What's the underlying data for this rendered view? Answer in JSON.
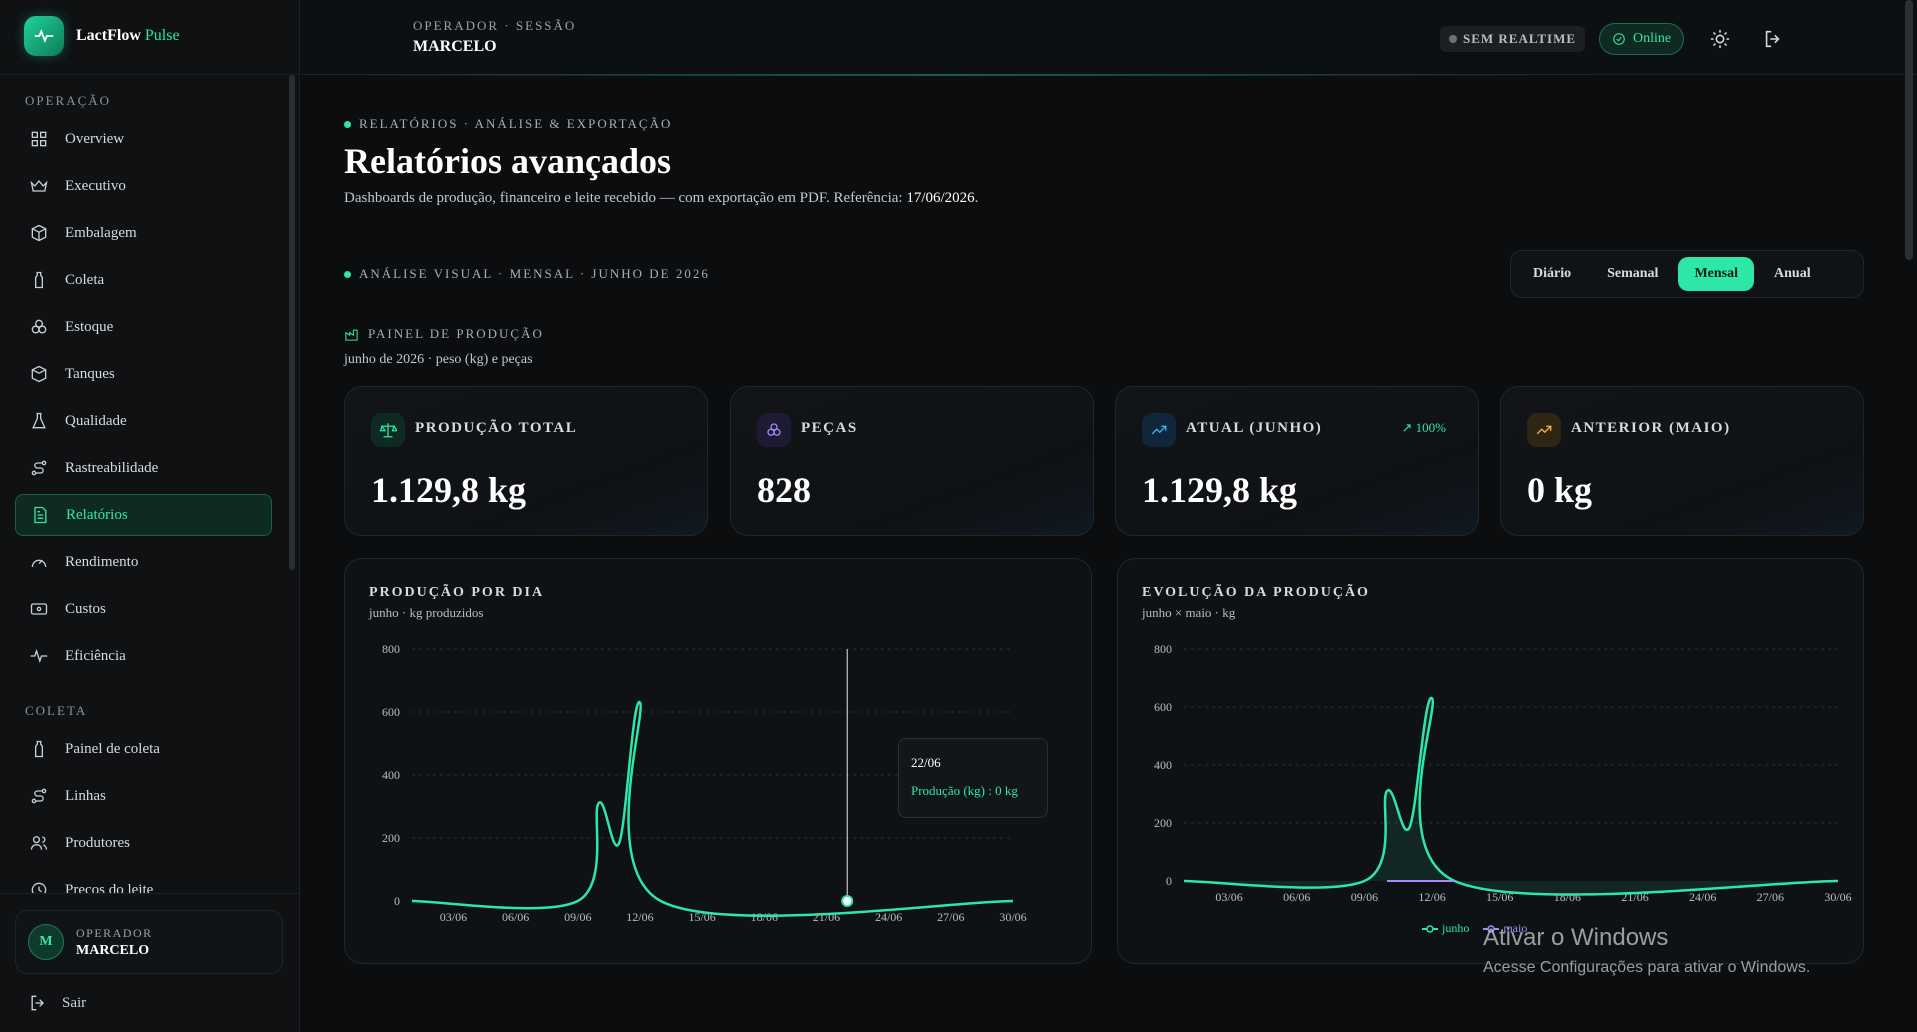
{
  "brand": {
    "name": "LactFlow",
    "accent": "Pulse"
  },
  "sidebar": {
    "sections": [
      {
        "label": "OPERAÇÃO",
        "items": [
          {
            "label": "Overview",
            "icon": "grid-icon"
          },
          {
            "label": "Executivo",
            "icon": "crown-icon"
          },
          {
            "label": "Embalagem",
            "icon": "package-icon"
          },
          {
            "label": "Coleta",
            "icon": "milk-bottle-icon"
          },
          {
            "label": "Estoque",
            "icon": "boxes-icon"
          },
          {
            "label": "Tanques",
            "icon": "tank-icon"
          },
          {
            "label": "Qualidade",
            "icon": "flask-icon"
          },
          {
            "label": "Rastreabilidade",
            "icon": "route-icon"
          },
          {
            "label": "Relatórios",
            "icon": "report-icon",
            "active": true
          },
          {
            "label": "Rendimento",
            "icon": "gauge-icon"
          },
          {
            "label": "Custos",
            "icon": "wallet-icon"
          },
          {
            "label": "Eficiência",
            "icon": "pulse-icon"
          }
        ]
      },
      {
        "label": "COLETA",
        "items": [
          {
            "label": "Painel de coleta",
            "icon": "milk-bottle-icon"
          },
          {
            "label": "Linhas",
            "icon": "route-icon"
          },
          {
            "label": "Produtores",
            "icon": "users-icon"
          },
          {
            "label": "Preços do leite",
            "icon": "price-icon"
          }
        ]
      }
    ],
    "user": {
      "initial": "M",
      "role": "OPERADOR",
      "name": "MARCELO"
    },
    "logout_label": "Sair"
  },
  "topbar": {
    "session_label": "OPERADOR · SESSÃO",
    "session_name": "MARCELO",
    "realtime_label": "SEM REALTIME",
    "online_label": "Online"
  },
  "header": {
    "kicker": "RELATÓRIOS · ANÁLISE & EXPORTAÇÃO",
    "title": "Relatórios avançados",
    "description": "Dashboards de produção, financeiro e leite recebido — com exportação em PDF. Referência:",
    "reference_date": "17/06/2026",
    "description_end": "."
  },
  "analysis": {
    "kicker": "ANÁLISE VISUAL · MENSAL · JUNHO DE 2026",
    "periods": [
      "Diário",
      "Semanal",
      "Mensal",
      "Anual"
    ],
    "active_period": "Mensal"
  },
  "panel": {
    "title": "PAINEL DE PRODUÇÃO",
    "subtitle": "junho de 2026 · peso (kg) e peças"
  },
  "kpis": [
    {
      "label": "PRODUÇÃO TOTAL",
      "value": "1.129,8 kg",
      "icon": "scale-icon",
      "color": "#2ee6a6"
    },
    {
      "label": "PEÇAS",
      "value": "828",
      "icon": "cheese-icon",
      "color": "#a78bfa"
    },
    {
      "label": "ATUAL (JUNHO)",
      "value": "1.129,8 kg",
      "icon": "trend-up-icon",
      "color": "#38bdf8",
      "badge": "↗ 100%"
    },
    {
      "label": "ANTERIOR (MAIO)",
      "value": "0 kg",
      "icon": "trend-up-icon",
      "color": "#f5b942"
    }
  ],
  "colors": {
    "accent": "#2ee6a6",
    "secondary": "#a78bfa",
    "background": "#0b0d0f"
  },
  "chart_data": [
    {
      "type": "line",
      "title": "PRODUÇÃO POR DIA",
      "subtitle": "junho · kg produzidos",
      "x_ticks": [
        "03/06",
        "06/06",
        "09/06",
        "12/06",
        "15/06",
        "18/06",
        "21/06",
        "24/06",
        "27/06",
        "30/06"
      ],
      "y_ticks": [
        0,
        200,
        400,
        600,
        800
      ],
      "ylim": [
        0,
        800
      ],
      "xlim": [
        1,
        30
      ],
      "series": [
        {
          "name": "Produção (kg)",
          "points": [
            [
              1,
              0
            ],
            [
              9,
              0
            ],
            [
              10,
              310
            ],
            [
              11,
              185
            ],
            [
              12,
              630
            ],
            [
              13,
              0
            ],
            [
              30,
              0
            ]
          ]
        }
      ],
      "tooltip": {
        "date": "22/06",
        "text": "Produção (kg) : 0 kg"
      },
      "grid": true
    },
    {
      "type": "area",
      "title": "EVOLUÇÃO DA PRODUÇÃO",
      "subtitle": "junho × maio · kg",
      "x_ticks": [
        "03/06",
        "06/06",
        "09/06",
        "12/06",
        "15/06",
        "18/06",
        "21/06",
        "24/06",
        "27/06",
        "30/06"
      ],
      "y_ticks": [
        0,
        200,
        400,
        600,
        800
      ],
      "ylim": [
        0,
        800
      ],
      "xlim": [
        1,
        30
      ],
      "series": [
        {
          "name": "junho",
          "points": [
            [
              1,
              0
            ],
            [
              9,
              0
            ],
            [
              10,
              310
            ],
            [
              11,
              185
            ],
            [
              12,
              630
            ],
            [
              13,
              0
            ],
            [
              30,
              0
            ]
          ]
        },
        {
          "name": "maio",
          "points": [
            [
              10,
              0
            ],
            [
              13,
              0
            ]
          ]
        }
      ],
      "legend": "bottom-center",
      "grid": true
    }
  ],
  "watermark": {
    "title": "Ativar o Windows",
    "subtitle": "Acesse Configurações para ativar o Windows."
  }
}
